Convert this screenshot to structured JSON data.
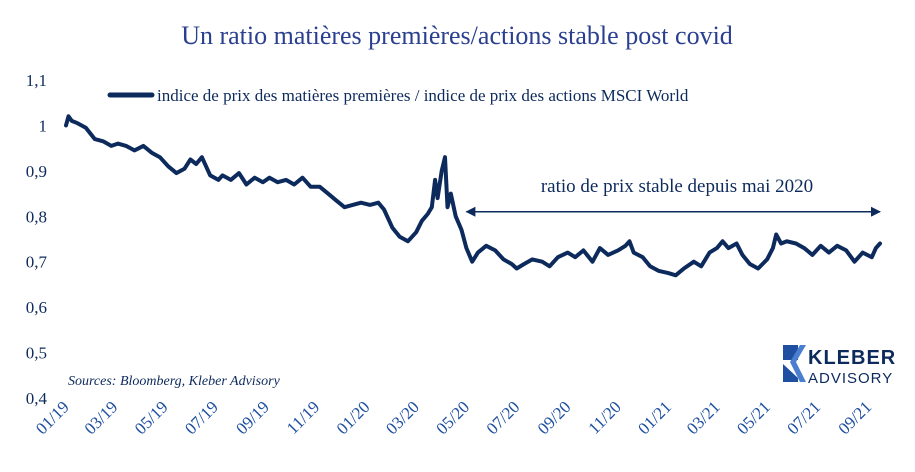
{
  "chart_data": {
    "type": "line",
    "title": "Un ratio matières premières/actions stable post covid",
    "xlabel": "",
    "ylabel": "",
    "ylim": [
      0.4,
      1.1
    ],
    "yticks": [
      "0,4",
      "0,5",
      "0,6",
      "0,7",
      "0,8",
      "0,9",
      "1",
      "1,1"
    ],
    "xticks": [
      "01/19",
      "03/19",
      "05/19",
      "07/19",
      "09/19",
      "11/19",
      "01/20",
      "03/20",
      "05/20",
      "07/20",
      "09/20",
      "11/20",
      "01/21",
      "03/21",
      "05/21",
      "07/21",
      "09/21"
    ],
    "grid": false,
    "legend_position": "top",
    "series": [
      {
        "name": "indice de prix des matières premières / indice de prix des actions MSCI World",
        "color": "#0d2a5c",
        "points": [
          [
            "2019-01-01",
            1.0
          ],
          [
            "2019-01-04",
            1.02
          ],
          [
            "2019-01-08",
            1.01
          ],
          [
            "2019-01-15",
            1.005
          ],
          [
            "2019-01-25",
            0.995
          ],
          [
            "2019-02-05",
            0.97
          ],
          [
            "2019-02-15",
            0.965
          ],
          [
            "2019-02-25",
            0.955
          ],
          [
            "2019-03-05",
            0.96
          ],
          [
            "2019-03-15",
            0.955
          ],
          [
            "2019-03-25",
            0.945
          ],
          [
            "2019-04-05",
            0.955
          ],
          [
            "2019-04-15",
            0.94
          ],
          [
            "2019-04-25",
            0.93
          ],
          [
            "2019-05-05",
            0.91
          ],
          [
            "2019-05-15",
            0.895
          ],
          [
            "2019-05-25",
            0.905
          ],
          [
            "2019-06-01",
            0.925
          ],
          [
            "2019-06-08",
            0.915
          ],
          [
            "2019-06-15",
            0.93
          ],
          [
            "2019-06-25",
            0.89
          ],
          [
            "2019-07-05",
            0.88
          ],
          [
            "2019-07-10",
            0.89
          ],
          [
            "2019-07-20",
            0.88
          ],
          [
            "2019-07-30",
            0.895
          ],
          [
            "2019-08-08",
            0.87
          ],
          [
            "2019-08-18",
            0.885
          ],
          [
            "2019-08-28",
            0.875
          ],
          [
            "2019-09-05",
            0.885
          ],
          [
            "2019-09-15",
            0.875
          ],
          [
            "2019-09-25",
            0.88
          ],
          [
            "2019-10-05",
            0.87
          ],
          [
            "2019-10-15",
            0.885
          ],
          [
            "2019-10-25",
            0.865
          ],
          [
            "2019-11-05",
            0.865
          ],
          [
            "2019-11-15",
            0.85
          ],
          [
            "2019-11-25",
            0.835
          ],
          [
            "2019-12-05",
            0.82
          ],
          [
            "2019-12-15",
            0.825
          ],
          [
            "2019-12-25",
            0.83
          ],
          [
            "2020-01-05",
            0.825
          ],
          [
            "2020-01-15",
            0.83
          ],
          [
            "2020-01-22",
            0.815
          ],
          [
            "2020-02-01",
            0.775
          ],
          [
            "2020-02-10",
            0.755
          ],
          [
            "2020-02-20",
            0.745
          ],
          [
            "2020-03-01",
            0.765
          ],
          [
            "2020-03-08",
            0.79
          ],
          [
            "2020-03-15",
            0.805
          ],
          [
            "2020-03-20",
            0.82
          ],
          [
            "2020-03-24",
            0.88
          ],
          [
            "2020-03-27",
            0.84
          ],
          [
            "2020-04-01",
            0.9
          ],
          [
            "2020-04-05",
            0.93
          ],
          [
            "2020-04-08",
            0.82
          ],
          [
            "2020-04-12",
            0.85
          ],
          [
            "2020-04-18",
            0.8
          ],
          [
            "2020-04-25",
            0.77
          ],
          [
            "2020-05-01",
            0.73
          ],
          [
            "2020-05-08",
            0.7
          ],
          [
            "2020-05-15",
            0.72
          ],
          [
            "2020-05-25",
            0.735
          ],
          [
            "2020-06-05",
            0.725
          ],
          [
            "2020-06-15",
            0.705
          ],
          [
            "2020-06-25",
            0.695
          ],
          [
            "2020-07-01",
            0.685
          ],
          [
            "2020-07-10",
            0.695
          ],
          [
            "2020-07-20",
            0.705
          ],
          [
            "2020-08-01",
            0.7
          ],
          [
            "2020-08-10",
            0.69
          ],
          [
            "2020-08-20",
            0.71
          ],
          [
            "2020-09-01",
            0.72
          ],
          [
            "2020-09-10",
            0.71
          ],
          [
            "2020-09-20",
            0.725
          ],
          [
            "2020-10-01",
            0.7
          ],
          [
            "2020-10-10",
            0.73
          ],
          [
            "2020-10-20",
            0.715
          ],
          [
            "2020-11-01",
            0.725
          ],
          [
            "2020-11-10",
            0.735
          ],
          [
            "2020-11-15",
            0.745
          ],
          [
            "2020-11-20",
            0.72
          ],
          [
            "2020-12-01",
            0.71
          ],
          [
            "2020-12-10",
            0.69
          ],
          [
            "2020-12-20",
            0.68
          ],
          [
            "2021-01-01",
            0.675
          ],
          [
            "2021-01-10",
            0.67
          ],
          [
            "2021-01-20",
            0.685
          ],
          [
            "2021-02-01",
            0.7
          ],
          [
            "2021-02-10",
            0.69
          ],
          [
            "2021-02-20",
            0.72
          ],
          [
            "2021-03-01",
            0.73
          ],
          [
            "2021-03-08",
            0.745
          ],
          [
            "2021-03-15",
            0.73
          ],
          [
            "2021-03-25",
            0.74
          ],
          [
            "2021-04-01",
            0.715
          ],
          [
            "2021-04-10",
            0.695
          ],
          [
            "2021-04-20",
            0.685
          ],
          [
            "2021-05-01",
            0.705
          ],
          [
            "2021-05-08",
            0.73
          ],
          [
            "2021-05-12",
            0.76
          ],
          [
            "2021-05-18",
            0.74
          ],
          [
            "2021-05-25",
            0.745
          ],
          [
            "2021-06-05",
            0.74
          ],
          [
            "2021-06-15",
            0.73
          ],
          [
            "2021-06-25",
            0.715
          ],
          [
            "2021-07-05",
            0.735
          ],
          [
            "2021-07-15",
            0.72
          ],
          [
            "2021-07-25",
            0.735
          ],
          [
            "2021-08-05",
            0.725
          ],
          [
            "2021-08-15",
            0.7
          ],
          [
            "2021-08-25",
            0.72
          ],
          [
            "2021-09-05",
            0.71
          ],
          [
            "2021-09-10",
            0.73
          ],
          [
            "2021-09-15",
            0.74
          ]
        ]
      }
    ],
    "annotations": [
      {
        "text": "ratio de prix stable depuis mai 2020",
        "type": "double-arrow",
        "from": "2020-05-01",
        "to": "2021-09-15",
        "y": 0.81
      }
    ]
  },
  "source_note": "Sources: Bloomberg, Kleber Advisory",
  "logo": {
    "line1": "KLEBER",
    "line2": "ADVISORY"
  }
}
